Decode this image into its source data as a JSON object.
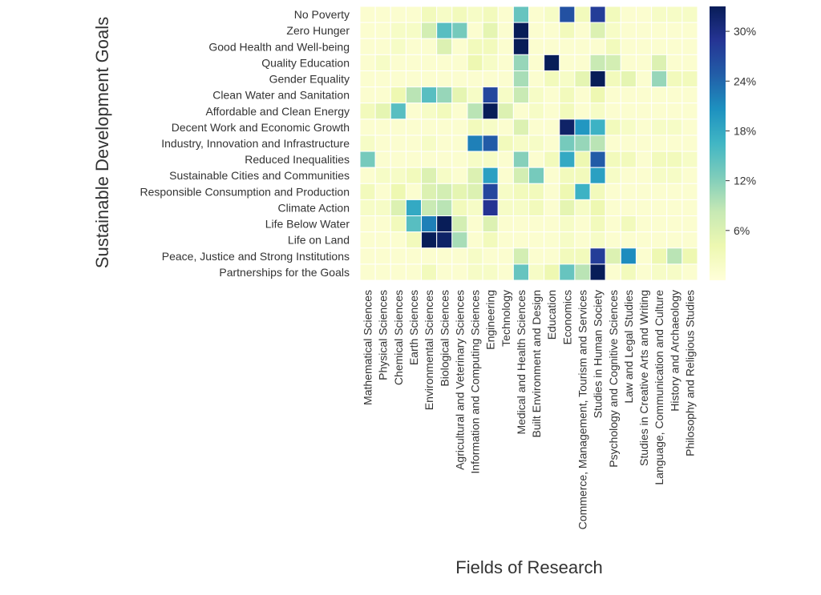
{
  "chart_data": {
    "type": "heatmap",
    "title": "",
    "xlabel": "Fields of Research",
    "ylabel": "Sustainable Development Goals",
    "colormap": "YlGnBu",
    "value_range": [
      0,
      33
    ],
    "colorbar_ticks": [
      6,
      12,
      18,
      24,
      30
    ],
    "colorbar_tick_labels": [
      "6%",
      "12%",
      "18%",
      "24%",
      "30%"
    ],
    "rows": [
      "No Poverty",
      "Zero Hunger",
      "Good Health and Well-being",
      "Quality Education",
      "Gender Equality",
      "Clean Water and Sanitation",
      "Affordable and Clean Energy",
      "Decent Work and Economic Growth",
      "Industry, Innovation and Infrastructure",
      "Reduced Inequalities",
      "Sustainable Cities and Communities",
      "Responsible Consumption and Production",
      "Climate Action",
      "Life Below Water",
      "Life on Land",
      "Peace, Justice and Strong Institutions",
      "Partnerships for the Goals"
    ],
    "columns": [
      "Mathematical Sciences",
      "Physical Sciences",
      "Chemical Sciences",
      "Earth Sciences",
      "Environmental Sciences",
      "Biological Sciences",
      "Agricultural and Veterinary Sciences",
      "Information and Computing Sciences",
      "Engineering",
      "Technology",
      "Medical and Health Sciences",
      "Built Environment and Design",
      "Education",
      "Economics",
      "Commerce, Management, Tourism and Services",
      "Studies in Human Society",
      "Psychology and Cognitive Sciences",
      "Law and Legal Studies",
      "Studies in Creative Arts and Writing",
      "Language, Communication and Culture",
      "History and Archaeology",
      "Philosophy and Religious Studies"
    ],
    "values": [
      [
        1,
        1,
        1,
        1,
        3,
        2,
        3,
        2,
        3,
        1,
        14,
        1,
        2,
        26,
        3,
        28,
        3,
        1,
        1,
        2,
        2,
        2
      ],
      [
        1,
        1,
        2,
        2,
        7,
        15,
        13,
        1,
        5,
        1,
        33,
        1,
        1,
        3,
        1,
        6,
        2,
        1,
        1,
        1,
        1,
        1
      ],
      [
        1,
        1,
        2,
        1,
        1,
        6,
        1,
        3,
        3,
        1,
        33,
        1,
        1,
        1,
        1,
        1,
        3,
        1,
        1,
        1,
        1,
        1
      ],
      [
        1,
        2,
        1,
        1,
        1,
        1,
        1,
        4,
        2,
        1,
        11,
        1,
        33,
        1,
        1,
        8,
        7,
        1,
        1,
        6,
        1,
        1
      ],
      [
        1,
        1,
        1,
        1,
        1,
        1,
        1,
        1,
        1,
        1,
        10,
        1,
        3,
        2,
        5,
        33,
        3,
        5,
        1,
        11,
        3,
        3
      ],
      [
        1,
        1,
        4,
        9,
        15,
        11,
        5,
        2,
        27,
        2,
        8,
        2,
        1,
        3,
        1,
        4,
        1,
        1,
        1,
        1,
        1,
        1
      ],
      [
        3,
        5,
        15,
        1,
        2,
        3,
        1,
        9,
        33,
        6,
        1,
        2,
        1,
        3,
        1,
        2,
        1,
        1,
        1,
        1,
        1,
        1
      ],
      [
        1,
        1,
        1,
        1,
        1,
        1,
        1,
        3,
        2,
        1,
        6,
        1,
        1,
        32,
        20,
        17,
        3,
        2,
        1,
        2,
        2,
        1
      ],
      [
        2,
        1,
        1,
        1,
        2,
        1,
        1,
        22,
        25,
        3,
        2,
        2,
        1,
        13,
        11,
        9,
        1,
        1,
        1,
        1,
        1,
        1
      ],
      [
        13,
        1,
        1,
        1,
        1,
        1,
        1,
        2,
        2,
        1,
        12,
        1,
        3,
        18,
        4,
        25,
        3,
        3,
        1,
        3,
        3,
        2
      ],
      [
        1,
        2,
        2,
        3,
        6,
        2,
        1,
        6,
        19,
        1,
        7,
        13,
        1,
        3,
        3,
        19,
        2,
        1,
        1,
        2,
        2,
        1
      ],
      [
        3,
        1,
        4,
        1,
        6,
        7,
        5,
        6,
        27,
        2,
        3,
        3,
        1,
        4,
        17,
        3,
        1,
        1,
        1,
        1,
        1,
        1
      ],
      [
        2,
        2,
        6,
        18,
        8,
        9,
        3,
        2,
        29,
        2,
        2,
        3,
        1,
        5,
        2,
        4,
        1,
        1,
        1,
        1,
        1,
        1
      ],
      [
        1,
        1,
        3,
        15,
        22,
        33,
        7,
        1,
        6,
        1,
        1,
        1,
        1,
        2,
        1,
        3,
        1,
        3,
        1,
        1,
        1,
        1
      ],
      [
        1,
        1,
        1,
        3,
        33,
        32,
        10,
        1,
        3,
        1,
        1,
        1,
        1,
        2,
        1,
        2,
        1,
        1,
        1,
        1,
        1,
        1
      ],
      [
        1,
        1,
        1,
        1,
        1,
        1,
        1,
        2,
        1,
        1,
        7,
        1,
        1,
        3,
        3,
        28,
        6,
        21,
        1,
        4,
        9,
        4
      ],
      [
        1,
        1,
        1,
        1,
        3,
        1,
        1,
        2,
        2,
        1,
        14,
        2,
        4,
        14,
        9,
        33,
        1,
        3,
        1,
        2,
        2,
        1
      ]
    ],
    "value_unit": "%",
    "grid": false,
    "colorbar_placement": "right"
  }
}
